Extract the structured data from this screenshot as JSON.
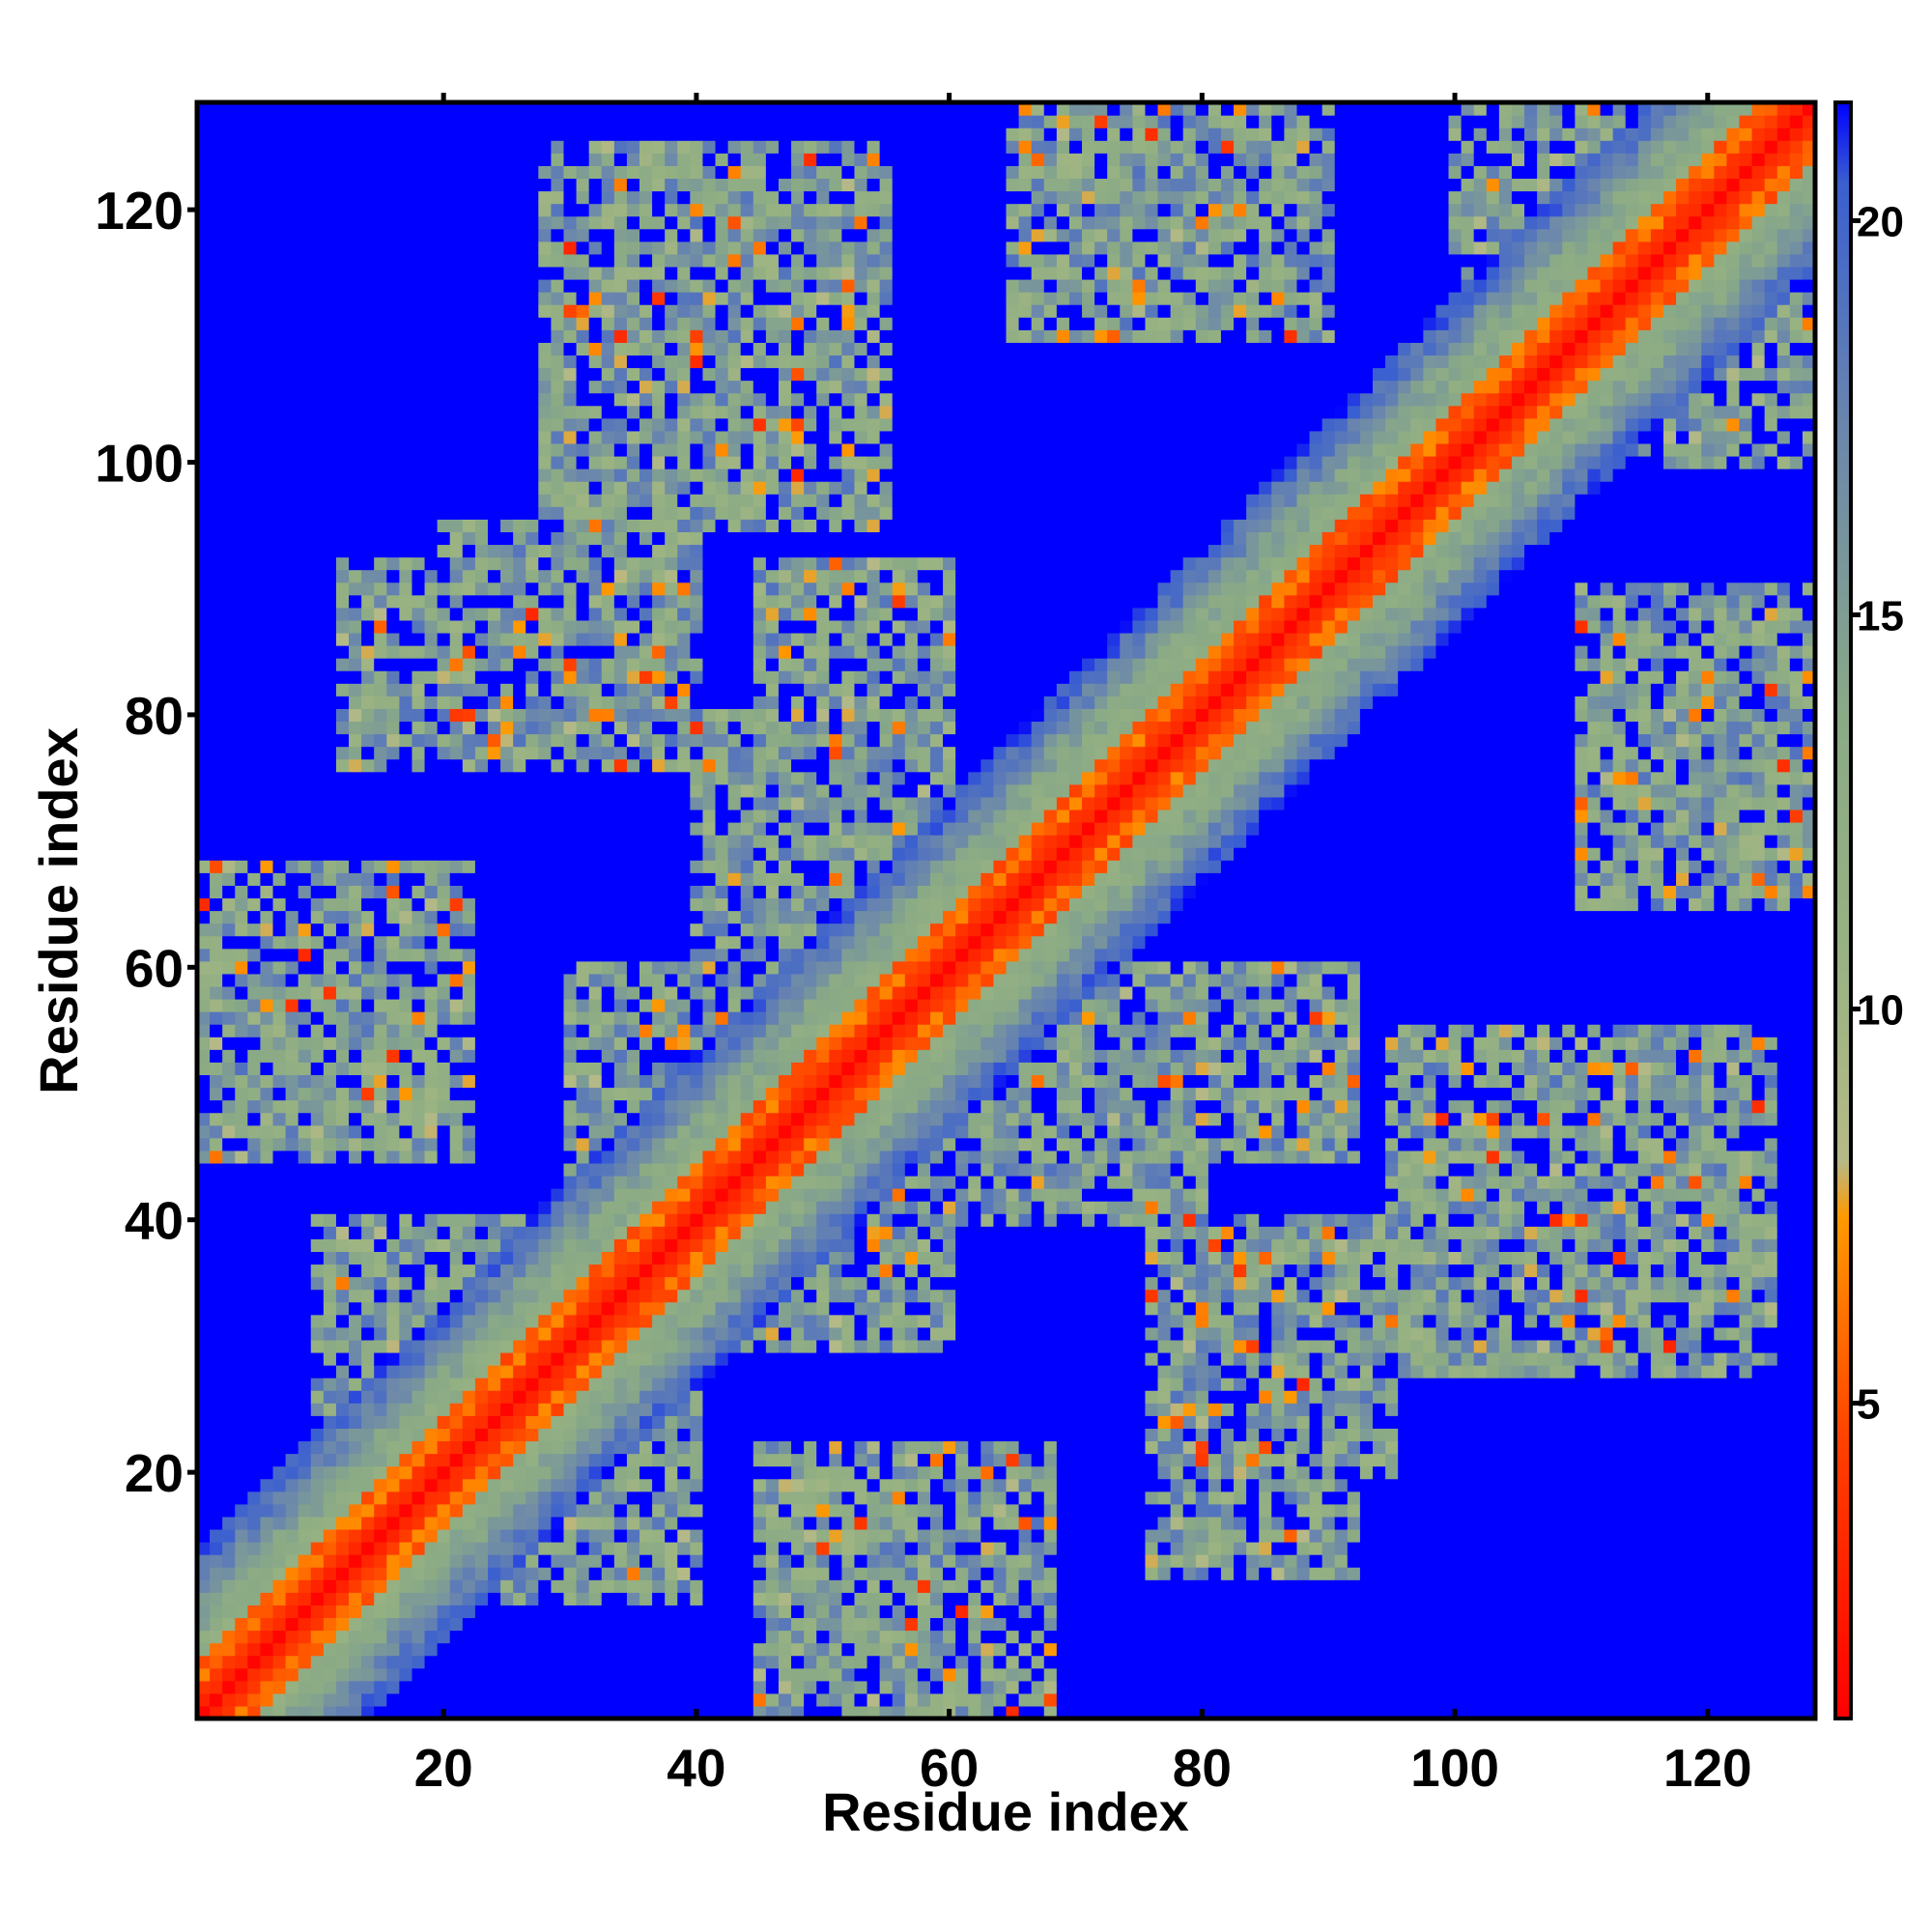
{
  "chart_data": {
    "type": "heatmap",
    "title": "",
    "xlabel": "Residue index",
    "ylabel": "Residue index",
    "n_residues": 128,
    "xlim": [
      1,
      128
    ],
    "ylim": [
      1,
      128
    ],
    "x_ticks": [
      20,
      40,
      60,
      80,
      100,
      120
    ],
    "y_ticks": [
      20,
      40,
      60,
      80,
      100,
      120
    ],
    "colorbar": {
      "ticks": [
        5,
        10,
        15,
        20
      ],
      "range": [
        1,
        21.5
      ],
      "colors": [
        {
          "stop": 0.0,
          "color": "#ff0000"
        },
        {
          "stop": 0.17,
          "color": "#ff4000"
        },
        {
          "stop": 0.31,
          "color": "#ff9900"
        },
        {
          "stop": 0.345,
          "color": "#b6b987"
        },
        {
          "stop": 0.48,
          "color": "#97b282"
        },
        {
          "stop": 0.62,
          "color": "#8aaa86"
        },
        {
          "stop": 0.8,
          "color": "#6a86ad"
        },
        {
          "stop": 0.95,
          "color": "#3a5fd0"
        },
        {
          "stop": 1.0,
          "color": "#0000ff"
        }
      ]
    },
    "description_values": {
      "diagonal": "distance ~1-4 along residue i == j",
      "background": "distance >= 21 (blue)"
    },
    "contact_regions": [
      {
        "x": [
          1,
          22
        ],
        "y": [
          45,
          68
        ]
      },
      {
        "x": [
          12,
          40
        ],
        "y": [
          76,
          92
        ]
      },
      {
        "x": [
          28,
          55
        ],
        "y": [
          95,
          125
        ]
      },
      {
        "x": [
          45,
          58
        ],
        "y": [
          2,
          22
        ]
      },
      {
        "x": [
          10,
          30
        ],
        "y": [
          25,
          40
        ]
      },
      {
        "x": [
          30,
          55
        ],
        "y": [
          42,
          55
        ]
      },
      {
        "x": [
          45,
          60
        ],
        "y": [
          70,
          92
        ]
      },
      {
        "x": [
          60,
          80
        ],
        "y": [
          40,
          58
        ]
      },
      {
        "x": [
          65,
          90
        ],
        "y": [
          110,
          128
        ]
      },
      {
        "x": [
          78,
          95
        ],
        "y": [
          20,
          40
        ]
      },
      {
        "x": [
          95,
          115
        ],
        "y": [
          35,
          52
        ]
      },
      {
        "x": [
          110,
          128
        ],
        "y": [
          65,
          90
        ]
      },
      {
        "x": [
          100,
          128
        ],
        "y": [
          100,
          128
        ]
      },
      {
        "x": [
          55,
          72
        ],
        "y": [
          55,
          72
        ]
      },
      {
        "x": [
          40,
          60
        ],
        "y": [
          30,
          45
        ]
      }
    ]
  }
}
